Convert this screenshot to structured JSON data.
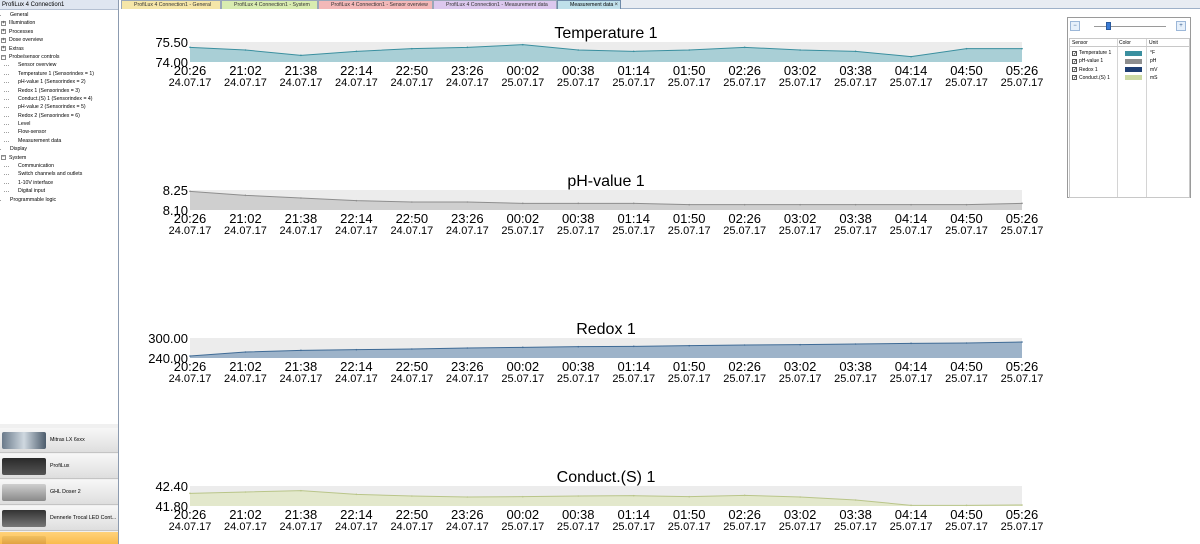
{
  "sidebar": {
    "title": "ProfiLux 4 Connection1",
    "tree": [
      {
        "label": "General",
        "level": 1,
        "expander": ""
      },
      {
        "label": "Illumination",
        "level": 0,
        "expander": "+"
      },
      {
        "label": "Processes",
        "level": 0,
        "expander": "+"
      },
      {
        "label": "Dose overview",
        "level": 0,
        "expander": "+"
      },
      {
        "label": "Extras",
        "level": 0,
        "expander": "+"
      },
      {
        "label": "Probe/sensor controls",
        "level": 0,
        "expander": "−"
      },
      {
        "label": "Sensor overview",
        "level": 2,
        "expander": ""
      },
      {
        "label": "Temperature 1 (Sensorindex = 1)",
        "level": 2,
        "expander": ""
      },
      {
        "label": "pH-value 1 (Sensorindex = 2)",
        "level": 2,
        "expander": ""
      },
      {
        "label": "Redox 1 (Sensorindex = 3)",
        "level": 2,
        "expander": ""
      },
      {
        "label": "Conduct.(S) 1 (Sensorindex = 4)",
        "level": 2,
        "expander": ""
      },
      {
        "label": "pH-value 2 (Sensorindex = 5)",
        "level": 2,
        "expander": ""
      },
      {
        "label": "Redox 2 (Sensorindex = 6)",
        "level": 2,
        "expander": ""
      },
      {
        "label": "Level",
        "level": 2,
        "expander": ""
      },
      {
        "label": "Flow-sensor",
        "level": 2,
        "expander": ""
      },
      {
        "label": "Measurement data",
        "level": 2,
        "expander": ""
      },
      {
        "label": "Display",
        "level": 1,
        "expander": ""
      },
      {
        "label": "System",
        "level": 0,
        "expander": "−"
      },
      {
        "label": "Communication",
        "level": 2,
        "expander": ""
      },
      {
        "label": "Switch channels and outlets",
        "level": 2,
        "expander": ""
      },
      {
        "label": "1-10V interface",
        "level": 2,
        "expander": ""
      },
      {
        "label": "Digital input",
        "level": 2,
        "expander": ""
      },
      {
        "label": "Programmable logic",
        "level": 1,
        "expander": ""
      }
    ],
    "devices": [
      {
        "name": "Mitras LX 6xxx",
        "active": false
      },
      {
        "name": "ProfiLux",
        "active": false
      },
      {
        "name": "GHL Doser 2",
        "active": false
      },
      {
        "name": "Dennerle Trocal LED Cont...",
        "active": false
      },
      {
        "name": "",
        "active": true
      }
    ]
  },
  "tabs": [
    {
      "label": "ProfiLux 4 Connection1 - General",
      "color": "#f5e6a8"
    },
    {
      "label": "ProfiLux 4 Connection1 - System",
      "color": "#d8ecb0"
    },
    {
      "label": "ProfiLux 4 Connection1 - Sensor overview",
      "color": "#f3b8b8"
    },
    {
      "label": "ProfiLux 4 Connection1 - Measurement data",
      "color": "#dcc8ee"
    },
    {
      "label": "Measurement data",
      "color": "#bfe0ea",
      "active": true,
      "close": "×"
    }
  ],
  "legend": {
    "zoom_out": "−",
    "zoom_in": "+",
    "headers": {
      "sensor": "Sensor",
      "color": "Color",
      "unit": "Unit"
    },
    "rows": [
      {
        "name": "Temperature 1",
        "color": "#3a8f9f",
        "unit": "°F",
        "checked": "✓"
      },
      {
        "name": "pH-value 1",
        "color": "#8e8e8e",
        "unit": "pH",
        "checked": "✓"
      },
      {
        "name": "Redox 1",
        "color": "#1f3f73",
        "unit": "mV",
        "checked": "✓"
      },
      {
        "name": "Conduct.(S) 1",
        "color": "#ccd9a4",
        "unit": "mS",
        "checked": "✓"
      }
    ]
  },
  "chart_data": [
    {
      "type": "area",
      "title": "Temperature 1",
      "ylim": [
        74.0,
        75.5
      ],
      "y_ticks": [
        "75.50",
        "74.00"
      ],
      "x_times": [
        "20:26",
        "21:02",
        "21:38",
        "22:14",
        "22:50",
        "23:26",
        "00:02",
        "00:38",
        "01:14",
        "01:50",
        "02:26",
        "03:02",
        "03:38",
        "04:14",
        "04:50",
        "05:26"
      ],
      "x_dates": [
        "24.07.17",
        "24.07.17",
        "24.07.17",
        "24.07.17",
        "24.07.17",
        "24.07.17",
        "25.07.17",
        "25.07.17",
        "25.07.17",
        "25.07.17",
        "25.07.17",
        "25.07.17",
        "25.07.17",
        "25.07.17",
        "25.07.17",
        "25.07.17"
      ],
      "values": [
        75.1,
        74.9,
        74.5,
        74.8,
        75.0,
        75.1,
        75.3,
        74.9,
        74.8,
        74.9,
        75.1,
        74.9,
        74.8,
        74.4,
        75.0,
        75.0
      ],
      "color": "#3a8f9f",
      "fill": "#a9cfd6"
    },
    {
      "type": "area",
      "title": "pH-value 1",
      "ylim": [
        8.1,
        8.25
      ],
      "y_ticks": [
        "8.25",
        "8.10"
      ],
      "x_times": [
        "20:26",
        "21:02",
        "21:38",
        "22:14",
        "22:50",
        "23:26",
        "00:02",
        "00:38",
        "01:14",
        "01:50",
        "02:26",
        "03:02",
        "03:38",
        "04:14",
        "04:50",
        "05:26"
      ],
      "x_dates": [
        "24.07.17",
        "24.07.17",
        "24.07.17",
        "24.07.17",
        "24.07.17",
        "24.07.17",
        "25.07.17",
        "25.07.17",
        "25.07.17",
        "25.07.17",
        "25.07.17",
        "25.07.17",
        "25.07.17",
        "25.07.17",
        "25.07.17",
        "25.07.17"
      ],
      "values": [
        8.24,
        8.21,
        8.19,
        8.17,
        8.16,
        8.16,
        8.15,
        8.15,
        8.15,
        8.14,
        8.14,
        8.14,
        8.14,
        8.14,
        8.14,
        8.15
      ],
      "color": "#8e8e8e",
      "fill": "#cfcfcf"
    },
    {
      "type": "area",
      "title": "Redox 1",
      "ylim": [
        240,
        300
      ],
      "y_ticks": [
        "300.00",
        "240.00"
      ],
      "x_times": [
        "20:26",
        "21:02",
        "21:38",
        "22:14",
        "22:50",
        "23:26",
        "00:02",
        "00:38",
        "01:14",
        "01:50",
        "02:26",
        "03:02",
        "03:38",
        "04:14",
        "04:50",
        "05:26"
      ],
      "x_dates": [
        "24.07.17",
        "24.07.17",
        "24.07.17",
        "24.07.17",
        "24.07.17",
        "24.07.17",
        "25.07.17",
        "25.07.17",
        "25.07.17",
        "25.07.17",
        "25.07.17",
        "25.07.17",
        "25.07.17",
        "25.07.17",
        "25.07.17",
        "25.07.17"
      ],
      "values": [
        246,
        258,
        263,
        265,
        267,
        270,
        272,
        274,
        275,
        277,
        279,
        280,
        282,
        284,
        285,
        288
      ],
      "color": "#3f6b96",
      "fill": "#9db3c9"
    },
    {
      "type": "area",
      "title": "Conduct.(S) 1",
      "ylim": [
        41.8,
        42.4
      ],
      "y_ticks": [
        "42.40",
        "41.80"
      ],
      "x_times": [
        "20:26",
        "21:02",
        "21:38",
        "22:14",
        "22:50",
        "23:26",
        "00:02",
        "00:38",
        "01:14",
        "01:50",
        "02:26",
        "03:02",
        "03:38",
        "04:14",
        "04:50",
        "05:26"
      ],
      "x_dates": [
        "24.07.17",
        "24.07.17",
        "24.07.17",
        "24.07.17",
        "24.07.17",
        "24.07.17",
        "25.07.17",
        "25.07.17",
        "25.07.17",
        "25.07.17",
        "25.07.17",
        "25.07.17",
        "25.07.17",
        "25.07.17",
        "25.07.17",
        "25.07.17"
      ],
      "values": [
        42.18,
        42.22,
        42.26,
        42.15,
        42.1,
        42.07,
        42.08,
        42.1,
        42.11,
        42.08,
        42.12,
        42.07,
        41.98,
        41.82,
        41.82,
        41.83
      ],
      "color": "#b9c589",
      "fill": "#e3e8cc"
    }
  ]
}
